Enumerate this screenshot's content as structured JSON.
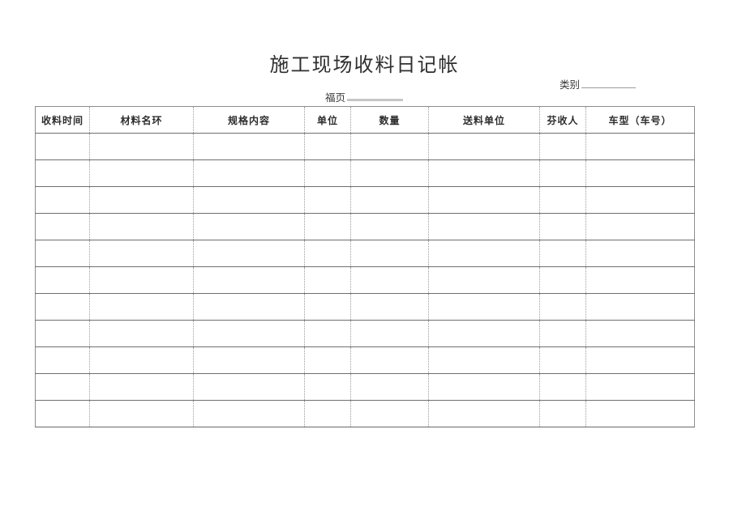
{
  "page": {
    "title": "施工现场收料日记帐",
    "category_label": "类别",
    "page_number_label": "福页",
    "ink_color": "#2f2f2f",
    "rule_line_color": "#6f6f6f",
    "light_rule_color": "#9c9c9c"
  },
  "table": {
    "headers": [
      "收料时间",
      "材料名环",
      "规格内容",
      "单位",
      "数量",
      "送料单位",
      "芬收人",
      "车型（车号）"
    ],
    "row_count": 11,
    "empty_cell": ""
  }
}
